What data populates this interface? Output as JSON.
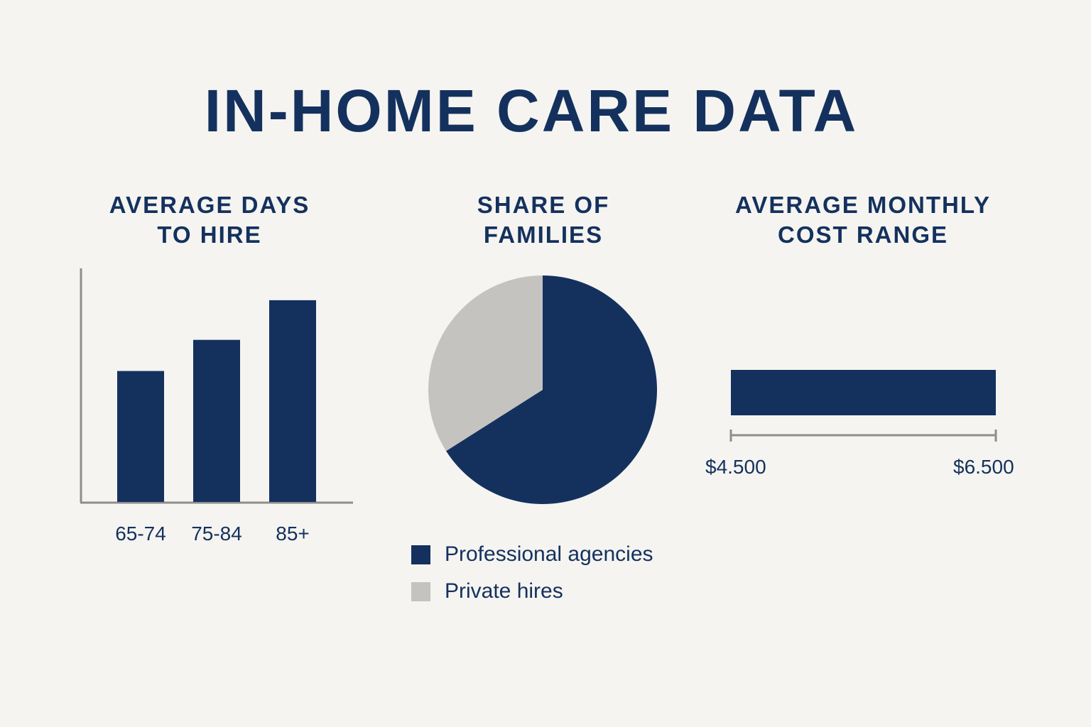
{
  "title": "IN-HOME CARE DATA",
  "chart_data": [
    {
      "type": "bar",
      "title_line1": "AVERAGE DAYS",
      "title_line2": "TO HIRE",
      "categories": [
        "65-74",
        "75-84",
        "85+"
      ],
      "values": [
        185,
        229,
        285
      ],
      "ylim": [
        0,
        330
      ],
      "color": "#14315e"
    },
    {
      "type": "pie",
      "title_line1": "SHARE OF",
      "title_line2": "FAMILIES",
      "slices": [
        {
          "label": "Professional agencies",
          "value": 66,
          "color": "#14315e"
        },
        {
          "label": "Private hires",
          "value": 34,
          "color": "#c4c3bf"
        }
      ]
    },
    {
      "type": "range",
      "title_line1": "AVERAGE MONTHLY",
      "title_line2": "COST RANGE",
      "min": 4500,
      "max": 6500,
      "min_label": "$4.500",
      "max_label": "$6.500",
      "color": "#14315e"
    }
  ]
}
